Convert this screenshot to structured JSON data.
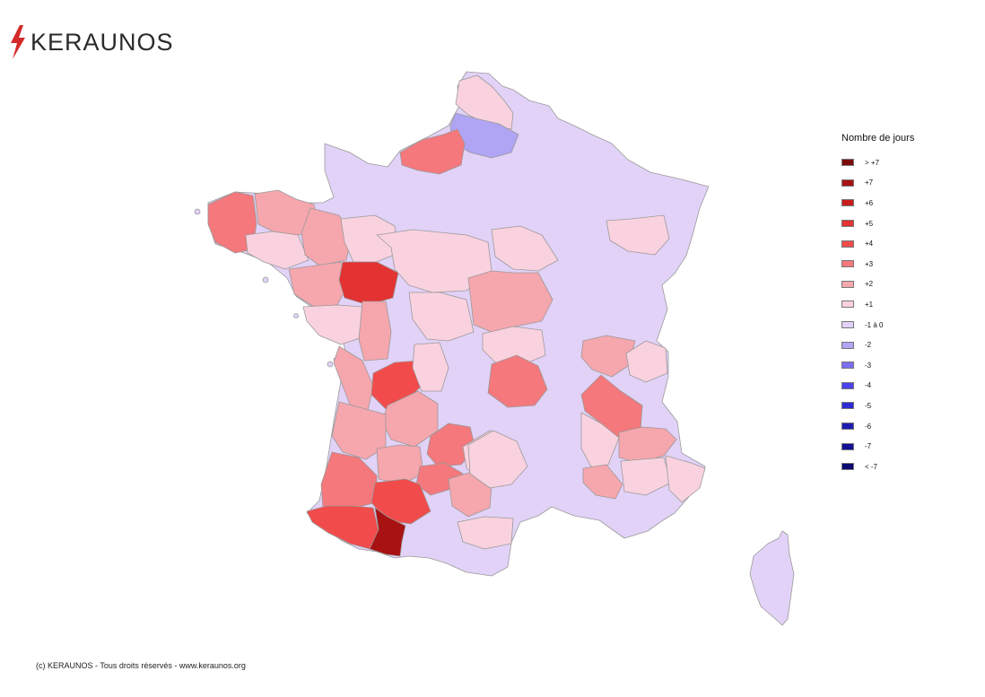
{
  "brand": {
    "name": "KERAUNOS",
    "logo_icon": "lightning-bolt-icon",
    "bolt_color": "#d42a2a"
  },
  "legend": {
    "title": "Nombre de jours",
    "items": [
      {
        "label": "> +7",
        "color": "#7b0c0c"
      },
      {
        "label": "+7",
        "color": "#a81212"
      },
      {
        "label": "+6",
        "color": "#c71d1d"
      },
      {
        "label": "+5",
        "color": "#e23232"
      },
      {
        "label": "+4",
        "color": "#f24b4b"
      },
      {
        "label": "+3",
        "color": "#f4787c"
      },
      {
        "label": "+2",
        "color": "#f6a6ad"
      },
      {
        "label": "+1",
        "color": "#fad2df"
      },
      {
        "label": "-1 à 0",
        "color": "#e2d2f7"
      },
      {
        "label": "-2",
        "color": "#b0a4f4"
      },
      {
        "label": "-3",
        "color": "#7c6ef0"
      },
      {
        "label": "-4",
        "color": "#4a42ec"
      },
      {
        "label": "-5",
        "color": "#2d2ad6"
      },
      {
        "label": "-6",
        "color": "#1d1db4"
      },
      {
        "label": "-7",
        "color": "#121294"
      },
      {
        "label": "< -7",
        "color": "#0a0a72"
      }
    ]
  },
  "footer": {
    "text": "(c) KERAUNOS - Tous droits réservés - www.keraunos.org"
  }
}
